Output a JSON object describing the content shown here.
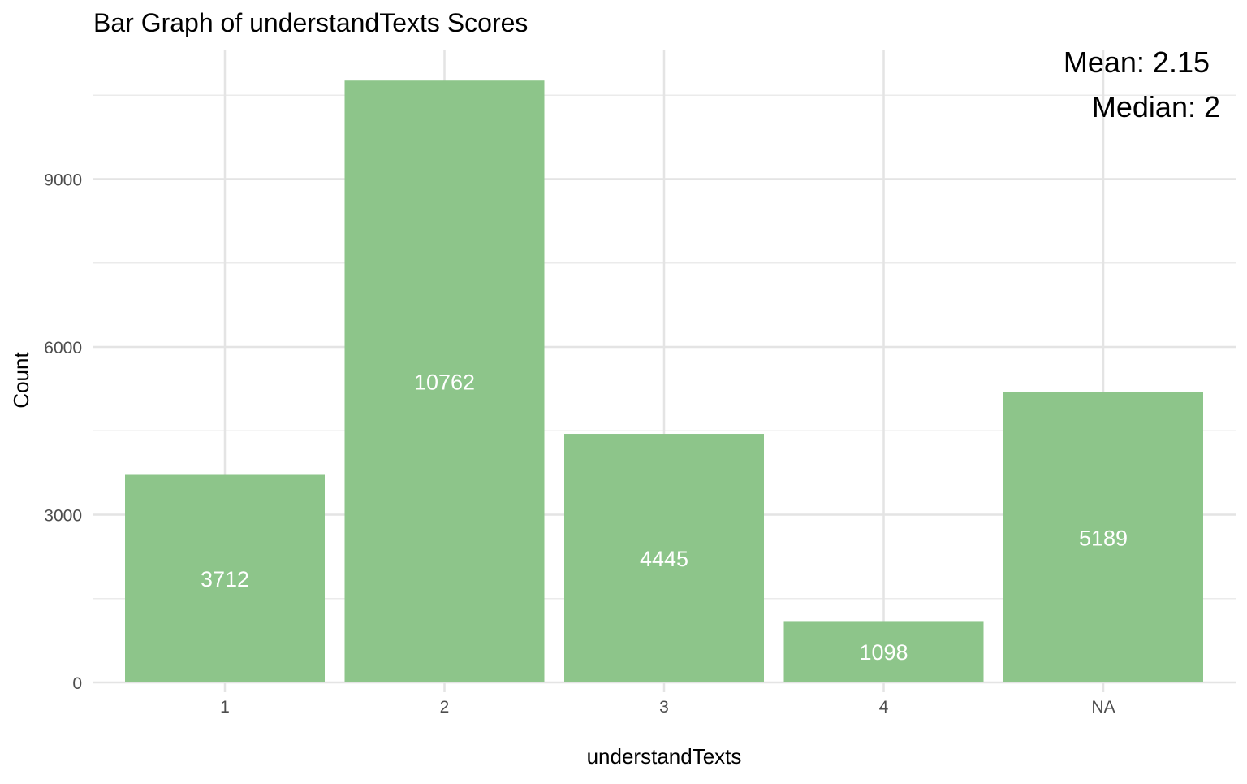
{
  "chart_data": {
    "type": "bar",
    "title": "Bar Graph of understandTexts Scores",
    "xlabel": "understandTexts",
    "ylabel": "Count",
    "categories": [
      "1",
      "2",
      "3",
      "4",
      "NA"
    ],
    "values": [
      3712,
      10762,
      4445,
      1098,
      5189
    ],
    "data_labels": [
      "3712",
      "10762",
      "4445",
      "1098",
      "5189"
    ],
    "y_ticks": [
      0,
      3000,
      6000,
      9000
    ],
    "y_tick_labels": [
      "0",
      "3000",
      "6000",
      "9000"
    ],
    "ylim": [
      0,
      11300
    ],
    "grid": true,
    "bar_color": "#8dc58a",
    "annotations": {
      "mean": "Mean: 2.15",
      "median": "Median: 2"
    }
  }
}
